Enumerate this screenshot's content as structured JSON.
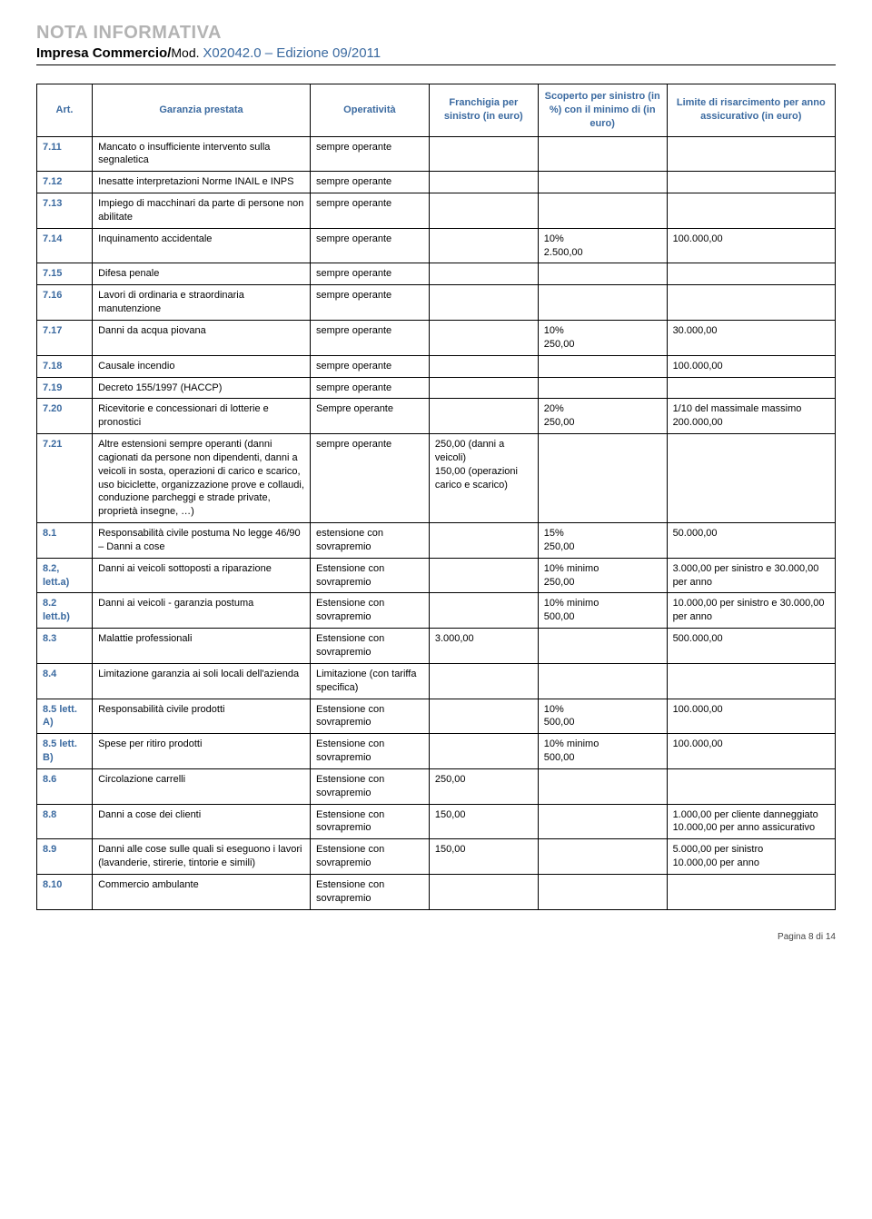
{
  "header": {
    "title": "NOTA INFORMATIVA",
    "subtitle_prefix": "Impresa Commercio/",
    "mod_label": "Mod. ",
    "mod_value": "X02042.0 – Edizione 09/2011"
  },
  "colors": {
    "title_grey": "#b3b3b3",
    "accent_blue": "#3b6aa0",
    "border": "#000000",
    "background": "#ffffff"
  },
  "table": {
    "headers": {
      "art": "Art.",
      "garanzia": "Garanzia prestata",
      "operativita": "Operatività",
      "franchigia": "Franchigia per sinistro (in euro)",
      "scoperto": "Scoperto per sinistro (in %) con il minimo di (in euro)",
      "limite": "Limite di risarcimento per anno assicurativo (in euro)"
    },
    "rows": [
      {
        "art": "7.11",
        "gar": "Mancato o insufficiente intervento sulla segnaletica",
        "op": "sempre operante",
        "fr": "",
        "sc": "",
        "li": ""
      },
      {
        "art": "7.12",
        "gar": "Inesatte interpretazioni Norme INAIL e INPS",
        "op": "sempre operante",
        "fr": "",
        "sc": "",
        "li": ""
      },
      {
        "art": "7.13",
        "gar": "Impiego di macchinari da parte di persone non abilitate",
        "op": "sempre operante",
        "fr": "",
        "sc": "",
        "li": ""
      },
      {
        "art": "7.14",
        "gar": "Inquinamento accidentale",
        "op": "sempre operante",
        "fr": "",
        "sc": "10%\n2.500,00",
        "li": "100.000,00"
      },
      {
        "art": "7.15",
        "gar": "Difesa penale",
        "op": "sempre operante",
        "fr": "",
        "sc": "",
        "li": ""
      },
      {
        "art": "7.16",
        "gar": "Lavori di ordinaria e straordinaria manutenzione",
        "op": "sempre operante",
        "fr": "",
        "sc": "",
        "li": ""
      },
      {
        "art": "7.17",
        "gar": "Danni da acqua piovana",
        "op": "sempre operante",
        "fr": "",
        "sc": "10%\n250,00",
        "li": "30.000,00"
      },
      {
        "art": "7.18",
        "gar": "Causale incendio",
        "op": "sempre operante",
        "fr": "",
        "sc": "",
        "li": "100.000,00"
      },
      {
        "art": "7.19",
        "gar": "Decreto 155/1997 (HACCP)",
        "op": "sempre operante",
        "fr": "",
        "sc": "",
        "li": ""
      },
      {
        "art": "7.20",
        "gar": "Ricevitorie e concessionari di lotterie e pronostici",
        "op": "Sempre operante",
        "fr": "",
        "sc": "20%\n250,00",
        "li": "1/10 del massimale massimo 200.000,00"
      },
      {
        "art": "7.21",
        "gar": "Altre estensioni sempre operanti (danni cagionati da persone non dipendenti, danni a veicoli in sosta, operazioni di carico e scarico, uso biciclette, organizzazione prove e collaudi, conduzione parcheggi e strade private, proprietà insegne, …)",
        "op": "sempre operante",
        "fr": "250,00 (danni a veicoli)\n150,00 (operazioni carico e scarico)",
        "sc": "",
        "li": ""
      },
      {
        "art": "8.1",
        "gar": "Responsabilità civile postuma No legge 46/90 – Danni a cose",
        "op": "estensione con sovrapremio",
        "fr": "",
        "sc": "15%\n250,00",
        "li": "50.000,00"
      },
      {
        "art": "8.2, lett.a)",
        "gar": "Danni ai veicoli sottoposti a riparazione",
        "op": "Estensione con sovrapremio",
        "fr": "",
        "sc": "10% minimo\n250,00",
        "li": "3.000,00 per sinistro e 30.000,00 per anno"
      },
      {
        "art": "8.2 lett.b)",
        "gar": "Danni ai veicoli - garanzia postuma",
        "op": "Estensione con sovrapremio",
        "fr": "",
        "sc": "10% minimo\n500,00",
        "li": "10.000,00 per sinistro e 30.000,00 per anno"
      },
      {
        "art": "8.3",
        "gar": "Malattie professionali",
        "op": "Estensione con sovrapremio",
        "fr": "3.000,00",
        "sc": "",
        "li": "500.000,00"
      },
      {
        "art": "8.4",
        "gar": "Limitazione garanzia ai soli locali dell'azienda",
        "op": "Limitazione (con tariffa specifica)",
        "fr": "",
        "sc": "",
        "li": ""
      },
      {
        "art": "8.5 lett. A)",
        "gar": "Responsabilità civile prodotti",
        "op": "Estensione con sovrapremio",
        "fr": "",
        "sc": "10%\n500,00",
        "li": "100.000,00"
      },
      {
        "art": "8.5 lett. B)",
        "gar": "Spese per ritiro prodotti",
        "op": "Estensione con sovrapremio",
        "fr": "",
        "sc": "10% minimo\n500,00",
        "li": "100.000,00"
      },
      {
        "art": "8.6",
        "gar": "Circolazione carrelli",
        "op": "Estensione con sovrapremio",
        "fr": "250,00",
        "sc": "",
        "li": ""
      },
      {
        "art": "8.8",
        "gar": "Danni a cose dei clienti",
        "op": "Estensione con sovrapremio",
        "fr": "150,00",
        "sc": "",
        "li": "1.000,00 per cliente danneggiato\n10.000,00 per anno assicurativo"
      },
      {
        "art": "8.9",
        "gar": "Danni alle cose sulle quali si eseguono i lavori (lavanderie, stirerie, tintorie e simili)",
        "op": "Estensione con sovrapremio",
        "fr": "150,00",
        "sc": "",
        "li": "5.000,00 per sinistro\n10.000,00 per anno"
      },
      {
        "art": "8.10",
        "gar": "Commercio ambulante",
        "op": "Estensione con sovrapremio",
        "fr": "",
        "sc": "",
        "li": ""
      }
    ]
  },
  "footer": {
    "text": "Pagina 8 di 14"
  }
}
